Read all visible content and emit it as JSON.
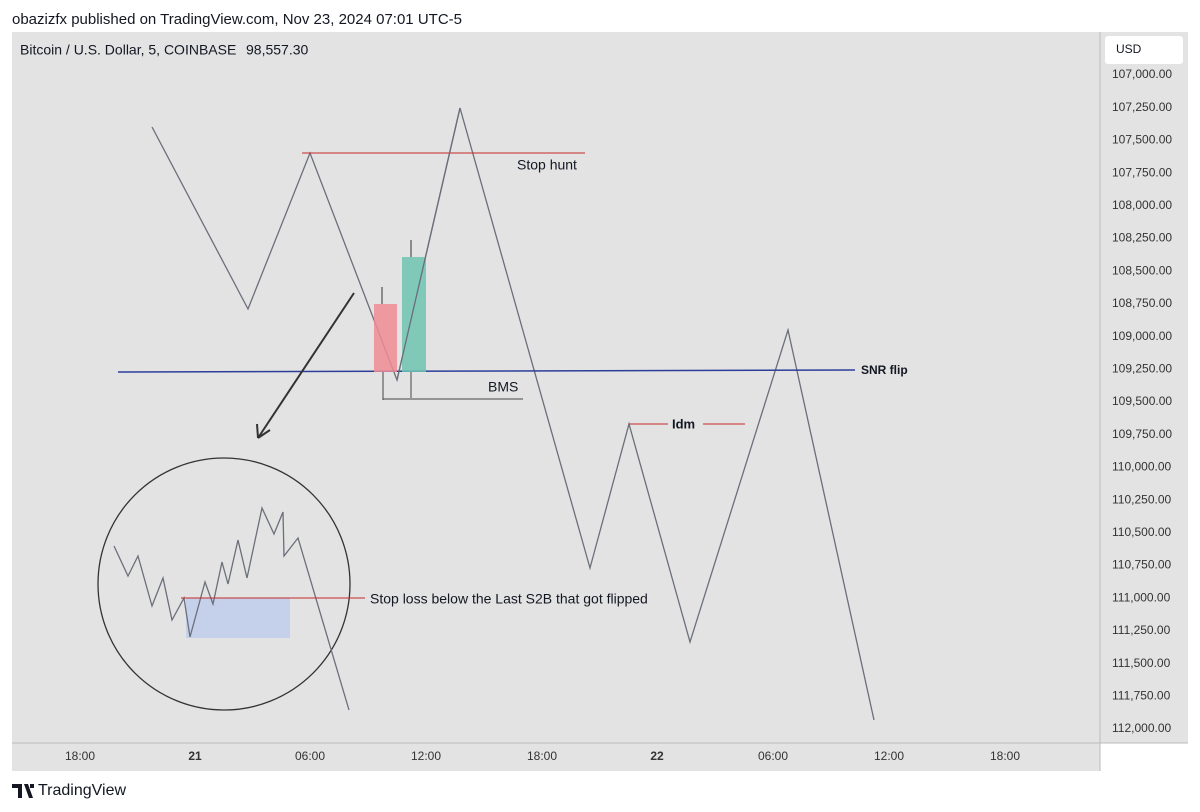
{
  "header": {
    "title": "obazizfx published on TradingView.com, Nov 23, 2024 07:01 UTC-5"
  },
  "legend": {
    "symbol": "Bitcoin / U.S. Dollar, 5, COINBASE",
    "price": "98,557.30"
  },
  "currency": "USD",
  "price_axis": [
    "107,000.00",
    "107,250.00",
    "107,500.00",
    "107,750.00",
    "108,000.00",
    "108,250.00",
    "108,500.00",
    "108,750.00",
    "109,000.00",
    "109,250.00",
    "109,500.00",
    "109,750.00",
    "110,000.00",
    "110,250.00",
    "110,500.00",
    "110,750.00",
    "111,000.00",
    "111,250.00",
    "111,500.00",
    "111,750.00",
    "112,000.00"
  ],
  "time_axis": [
    "18:00",
    "21",
    "06:00",
    "12:00",
    "18:00",
    "22",
    "06:00",
    "12:00",
    "18:00"
  ],
  "annotations": {
    "stop_hunt": "Stop hunt",
    "bms": "BMS",
    "idm": "Idm",
    "snr_flip": "SNR flip",
    "stop_loss": "Stop loss below the Last S2B that got flipped"
  },
  "footer": {
    "brand": "TradingView"
  }
}
